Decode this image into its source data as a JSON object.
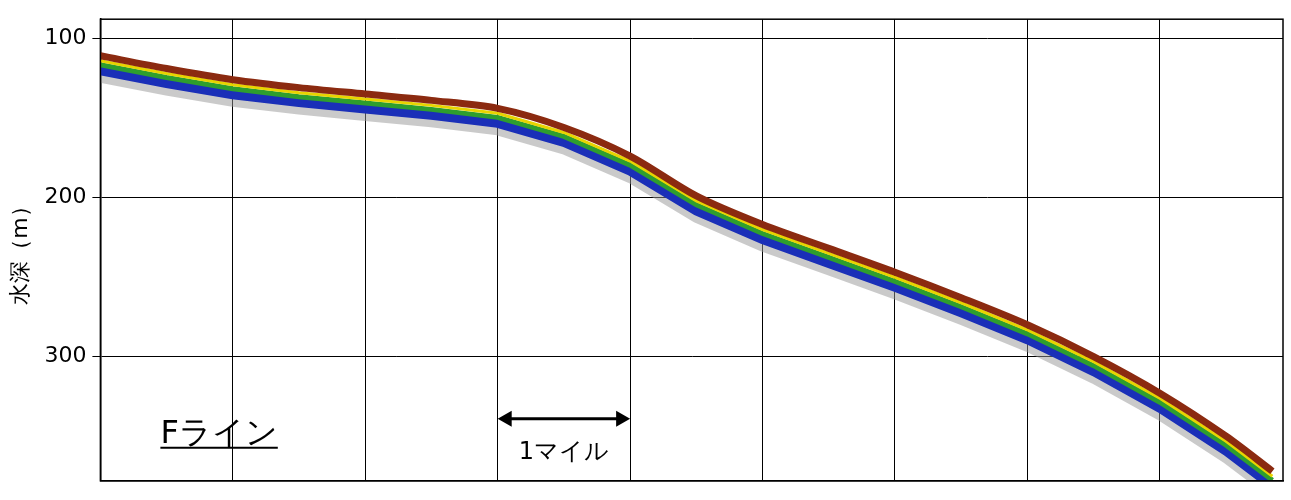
{
  "chart_data": {
    "type": "line",
    "y_label": "水深（m）",
    "x": [
      0,
      0.5,
      1.0,
      1.5,
      2.0,
      2.5,
      3.0,
      3.5,
      4.0,
      4.5,
      5.0,
      5.5,
      6.0,
      6.5,
      7.0,
      7.5,
      8.0,
      8.5,
      8.85
    ],
    "values": [
      111,
      119,
      126,
      131,
      135,
      139,
      144,
      156,
      174,
      199,
      217,
      232,
      247,
      263,
      280,
      300,
      323,
      350,
      372
    ],
    "color": "#8b2a10",
    "xlim": [
      0,
      8.93
    ],
    "xticks": [
      1,
      2,
      3,
      4,
      5,
      6,
      7,
      8
    ],
    "ylim": [
      378,
      88
    ],
    "yticks": [
      100,
      200,
      300
    ],
    "grid": true,
    "tick_labels": "y",
    "annotations": [
      {
        "text": "Fライン"
      },
      {
        "text": "1マイル",
        "x": [
          3,
          4
        ]
      }
    ]
  }
}
